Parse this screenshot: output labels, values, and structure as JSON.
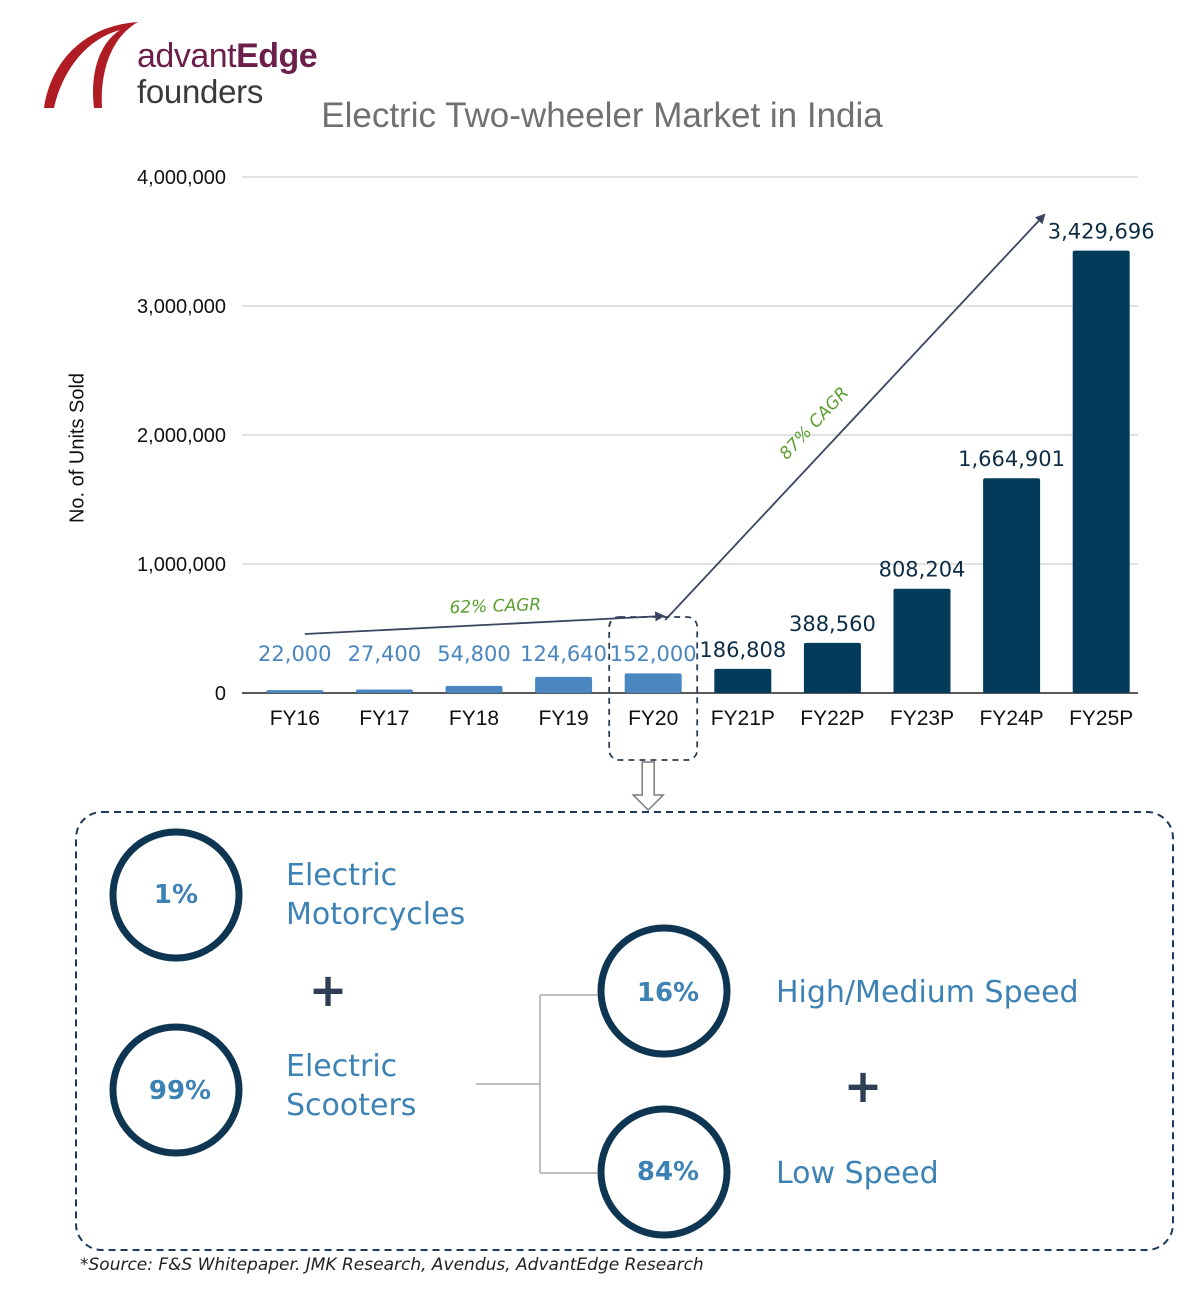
{
  "brand": {
    "name_part1": "advant",
    "name_part2": "Edge",
    "name_line2": "founders",
    "colors": {
      "arc": "#b01c24",
      "text1": "#6b1f4a",
      "text2": "#3a3a3a"
    }
  },
  "chart_data": {
    "type": "bar",
    "title": "Electric Two-wheeler Market in India",
    "ylabel": "No. of Units Sold",
    "xlabel": "",
    "ylim": [
      0,
      4000000
    ],
    "yticks": [
      0,
      1000000,
      2000000,
      3000000,
      4000000
    ],
    "ytick_labels": [
      "0",
      "1,000,000",
      "2,000,000",
      "3,000,000",
      "4,000,000"
    ],
    "grid": true,
    "categories": [
      "FY16",
      "FY17",
      "FY18",
      "FY19",
      "FY20",
      "FY21P",
      "FY22P",
      "FY23P",
      "FY24P",
      "FY25P"
    ],
    "values": [
      22000,
      27400,
      54800,
      124640,
      152000,
      186808,
      388560,
      808204,
      1664901,
      3429696
    ],
    "value_labels": [
      "22,000",
      "27,400",
      "54,800",
      "124,640",
      "152,000",
      "186,808",
      "388,560",
      "808,204",
      "1,664,901",
      "3,429,696"
    ],
    "bar_colors": [
      "#4a86bf",
      "#4a86bf",
      "#4a86bf",
      "#4a86bf",
      "#4a86bf",
      "#033c5a",
      "#033c5a",
      "#033c5a",
      "#033c5a",
      "#033c5a"
    ],
    "label_colors": [
      "#4a86bf",
      "#4a86bf",
      "#4a86bf",
      "#4a86bf",
      "#4a86bf",
      "#0e2d45",
      "#0e2d45",
      "#0e2d45",
      "#0e2d45",
      "#0e2d45"
    ],
    "highlighted_category": "FY20",
    "annotations": [
      {
        "text": "62% CAGR",
        "from": "FY16",
        "to": "FY20",
        "color": "#5b9e2e"
      },
      {
        "text": "87% CAGR",
        "from": "FY20",
        "to": "FY25P",
        "color": "#5b9e2e"
      }
    ]
  },
  "breakdown": {
    "segments": [
      {
        "percent": "1%",
        "label_line1": "Electric",
        "label_line2": "Motorcycles"
      },
      {
        "percent": "99%",
        "label_line1": "Electric",
        "label_line2": "Scooters"
      }
    ],
    "scooter_split": [
      {
        "percent": "16%",
        "label": "High/Medium Speed"
      },
      {
        "percent": "84%",
        "label": "Low Speed"
      }
    ],
    "plus_symbol": "+",
    "colors": {
      "circle": "#0e3552",
      "text": "#3d82b5",
      "frame": "#1e3a5a"
    }
  },
  "source_note": "*Source: F&S Whitepaper. JMK Research, Avendus, AdvantEdge Research"
}
